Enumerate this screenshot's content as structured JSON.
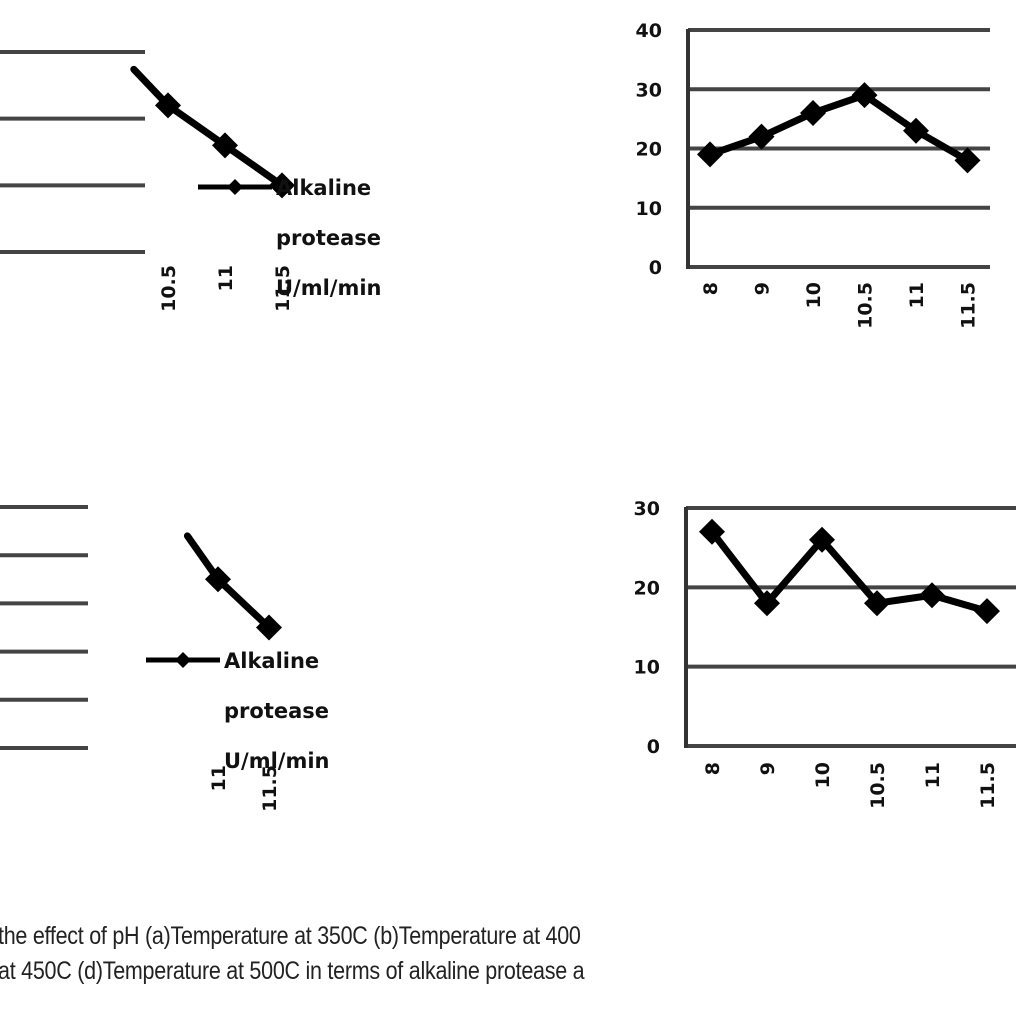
{
  "figure": {
    "caption_lines": [
      "the effect of pH (a)Temperature at 350C (b)Temperature at 400",
      "at 450C (d)Temperature at 500C in terms of alkaline protease a"
    ]
  },
  "chart_data": [
    {
      "id": "a",
      "type": "line",
      "title": "",
      "panel": "top-left (cropped)",
      "categories": [
        "10.5",
        "11",
        "11.5"
      ],
      "series": [
        {
          "name": "Alkaline protease U/ml/min",
          "values": [
            32,
            26,
            20
          ]
        }
      ],
      "xlabel": "",
      "ylabel": "",
      "ylim": [
        10,
        40
      ],
      "yticks": [],
      "grid": true,
      "legend": {
        "position": "right",
        "label": "Alkaline protease U/ml/min",
        "lines": [
          "Alkaline",
          "protease",
          "U/ml/min"
        ]
      },
      "note": "left portion and y tick labels cropped out of view; values estimated from gridlines"
    },
    {
      "id": "b",
      "type": "line",
      "title": "",
      "panel": "top-right",
      "categories": [
        "8",
        "9",
        "10",
        "10.5",
        "11",
        "11.5"
      ],
      "series": [
        {
          "name": "Alkaline protease U/ml/min",
          "values": [
            19,
            22,
            26,
            29,
            23,
            18
          ]
        }
      ],
      "xlabel": "",
      "ylabel": "",
      "ylim": [
        0,
        40
      ],
      "yticks": [
        "0",
        "10",
        "20",
        "30",
        "40"
      ],
      "grid": true
    },
    {
      "id": "c",
      "type": "line",
      "title": "",
      "panel": "bottom-left (cropped)",
      "categories": [
        "11",
        "11.5"
      ],
      "series": [
        {
          "name": "Alkaline protease U/ml/min",
          "values": [
            21,
            15
          ]
        }
      ],
      "xlabel": "",
      "ylabel": "",
      "ylim": [
        0,
        30
      ],
      "yticks": [],
      "grid": true,
      "legend": {
        "position": "right",
        "label": "Alkaline protease U/ml/min",
        "lines": [
          "Alkaline",
          "protease",
          "U/ml/min"
        ]
      },
      "note": "left portion and y tick labels cropped out of view; values estimated from gridlines"
    },
    {
      "id": "d",
      "type": "line",
      "title": "",
      "panel": "bottom-right",
      "categories": [
        "8",
        "9",
        "10",
        "10.5",
        "11",
        "11.5"
      ],
      "series": [
        {
          "name": "Alkaline protease U/ml/min",
          "values": [
            27,
            18,
            26,
            18,
            19,
            17
          ]
        }
      ],
      "xlabel": "",
      "ylabel": "",
      "ylim": [
        0,
        30
      ],
      "yticks": [
        "0",
        "10",
        "20",
        "30"
      ],
      "grid": true
    }
  ]
}
